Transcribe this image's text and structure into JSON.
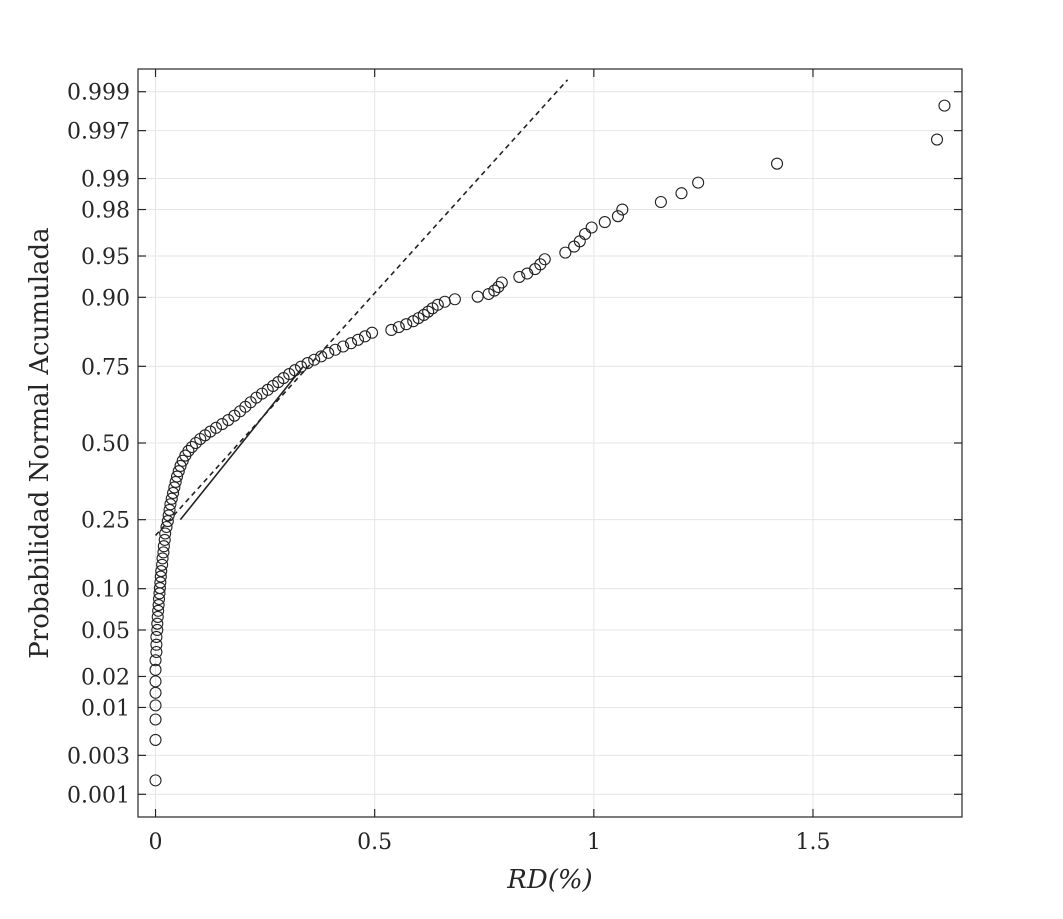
{
  "chart_data": {
    "type": "scatter",
    "title": "",
    "xlabel": "RD(%)",
    "ylabel": "Probabilidad Normal Acumulada",
    "xlim": [
      -0.04,
      1.84
    ],
    "ylim": [
      0.001,
      0.999
    ],
    "yscale": "normal-probability",
    "grid": true,
    "x_ticks": [
      {
        "value": 0,
        "label": "0"
      },
      {
        "value": 0.5,
        "label": "0.5"
      },
      {
        "value": 1,
        "label": "1"
      },
      {
        "value": 1.5,
        "label": "1.5"
      }
    ],
    "y_ticks": [
      {
        "value": 0.001,
        "label": "0.001"
      },
      {
        "value": 0.003,
        "label": "0.003"
      },
      {
        "value": 0.01,
        "label": "0.01"
      },
      {
        "value": 0.02,
        "label": "0.02"
      },
      {
        "value": 0.05,
        "label": "0.05"
      },
      {
        "value": 0.1,
        "label": "0.10"
      },
      {
        "value": 0.25,
        "label": "0.25"
      },
      {
        "value": 0.5,
        "label": "0.50"
      },
      {
        "value": 0.75,
        "label": "0.75"
      },
      {
        "value": 0.9,
        "label": "0.90"
      },
      {
        "value": 0.95,
        "label": "0.95"
      },
      {
        "value": 0.98,
        "label": "0.98"
      },
      {
        "value": 0.99,
        "label": "0.99"
      },
      {
        "value": 0.997,
        "label": "0.997"
      },
      {
        "value": 0.999,
        "label": "0.999"
      }
    ],
    "reference_line": {
      "solid": {
        "x": [
          0.0567,
          0.3372
        ],
        "p": [
          0.25,
          0.75
        ]
      },
      "dashed_extent": {
        "x": [
          0.0,
          0.94
        ],
        "p": [
          0.208,
          0.9993
        ]
      }
    },
    "points": [
      [
        0.0,
        0.0015
      ],
      [
        0.0,
        0.0045
      ],
      [
        0.0,
        0.0075
      ],
      [
        0.0,
        0.0105
      ],
      [
        0.0,
        0.014
      ],
      [
        0.0,
        0.018
      ],
      [
        0.0,
        0.023
      ],
      [
        0.0,
        0.028
      ],
      [
        0.002,
        0.033
      ],
      [
        0.002,
        0.038
      ],
      [
        0.002,
        0.044
      ],
      [
        0.004,
        0.05
      ],
      [
        0.004,
        0.056
      ],
      [
        0.005,
        0.063
      ],
      [
        0.006,
        0.07
      ],
      [
        0.007,
        0.077
      ],
      [
        0.008,
        0.085
      ],
      [
        0.009,
        0.093
      ],
      [
        0.01,
        0.101
      ],
      [
        0.011,
        0.11
      ],
      [
        0.012,
        0.12
      ],
      [
        0.013,
        0.13
      ],
      [
        0.015,
        0.142
      ],
      [
        0.016,
        0.155
      ],
      [
        0.018,
        0.168
      ],
      [
        0.019,
        0.182
      ],
      [
        0.021,
        0.197
      ],
      [
        0.022,
        0.213
      ],
      [
        0.025,
        0.23
      ],
      [
        0.028,
        0.246
      ],
      [
        0.03,
        0.262
      ],
      [
        0.032,
        0.278
      ],
      [
        0.034,
        0.295
      ],
      [
        0.037,
        0.312
      ],
      [
        0.04,
        0.33
      ],
      [
        0.043,
        0.348
      ],
      [
        0.046,
        0.366
      ],
      [
        0.049,
        0.384
      ],
      [
        0.053,
        0.402
      ],
      [
        0.057,
        0.42
      ],
      [
        0.062,
        0.438
      ],
      [
        0.068,
        0.456
      ],
      [
        0.075,
        0.472
      ],
      [
        0.083,
        0.486
      ],
      [
        0.092,
        0.5
      ],
      [
        0.102,
        0.514
      ],
      [
        0.113,
        0.527
      ],
      [
        0.125,
        0.54
      ],
      [
        0.138,
        0.553
      ],
      [
        0.152,
        0.566
      ],
      [
        0.166,
        0.58
      ],
      [
        0.18,
        0.595
      ],
      [
        0.193,
        0.61
      ],
      [
        0.205,
        0.625
      ],
      [
        0.217,
        0.64
      ],
      [
        0.23,
        0.655
      ],
      [
        0.243,
        0.668
      ],
      [
        0.256,
        0.68
      ],
      [
        0.268,
        0.692
      ],
      [
        0.28,
        0.704
      ],
      [
        0.292,
        0.716
      ],
      [
        0.305,
        0.728
      ],
      [
        0.318,
        0.739
      ],
      [
        0.332,
        0.749
      ],
      [
        0.347,
        0.759
      ],
      [
        0.362,
        0.768
      ],
      [
        0.378,
        0.777
      ],
      [
        0.394,
        0.786
      ],
      [
        0.41,
        0.794
      ],
      [
        0.428,
        0.802
      ],
      [
        0.446,
        0.81
      ],
      [
        0.462,
        0.818
      ],
      [
        0.478,
        0.826
      ],
      [
        0.494,
        0.834
      ],
      [
        0.538,
        0.84
      ],
      [
        0.555,
        0.846
      ],
      [
        0.572,
        0.852
      ],
      [
        0.588,
        0.858
      ],
      [
        0.6,
        0.864
      ],
      [
        0.612,
        0.87
      ],
      [
        0.622,
        0.876
      ],
      [
        0.632,
        0.882
      ],
      [
        0.644,
        0.888
      ],
      [
        0.66,
        0.893
      ],
      [
        0.683,
        0.897
      ],
      [
        0.735,
        0.901
      ],
      [
        0.76,
        0.905
      ],
      [
        0.773,
        0.91
      ],
      [
        0.782,
        0.915
      ],
      [
        0.79,
        0.921
      ],
      [
        0.83,
        0.928
      ],
      [
        0.848,
        0.932
      ],
      [
        0.866,
        0.937
      ],
      [
        0.878,
        0.942
      ],
      [
        0.888,
        0.947
      ],
      [
        0.935,
        0.953
      ],
      [
        0.955,
        0.958
      ],
      [
        0.968,
        0.962
      ],
      [
        0.98,
        0.967
      ],
      [
        0.995,
        0.971
      ],
      [
        1.025,
        0.974
      ],
      [
        1.055,
        0.977
      ],
      [
        1.065,
        0.98
      ],
      [
        1.153,
        0.983
      ],
      [
        1.2,
        0.986
      ],
      [
        1.238,
        0.989
      ],
      [
        1.418,
        0.993
      ],
      [
        1.783,
        0.9962
      ],
      [
        1.8,
        0.9985
      ]
    ]
  }
}
